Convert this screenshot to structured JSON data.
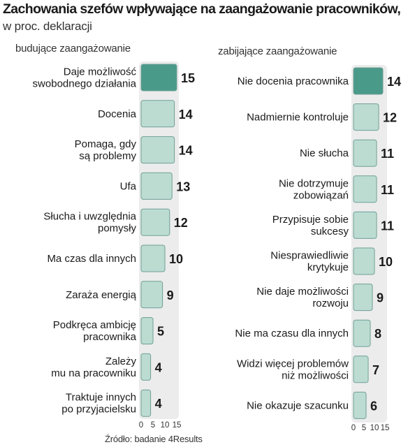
{
  "title": "Zachowania szefów wpływające na zaangażowanie pracowników,",
  "subtitle": "w proc. deklaracji",
  "source": "Źródło: badanie 4Results",
  "colors": {
    "highlight": "#4a9a8a",
    "bar": "#bcdcd2",
    "track": "#ececec",
    "bar_border": "#6f9f94"
  },
  "chart_data": [
    {
      "type": "bar",
      "orientation": "horizontal",
      "title": "budujące zaangażowanie",
      "categories": [
        "Daje możliwość\nswobodnego działania",
        "Docenia",
        "Pomaga, gdy\nsą problemy",
        "Ufa",
        "Słucha i uwzględnia\npomysły",
        "Ma czas dla innych",
        "Zaraża energią",
        "Podkręca ambicję\npracownika",
        "Zależy\nmu na pracowniku",
        "Traktuje innych\npo przyjacielsku"
      ],
      "values": [
        15,
        14,
        14,
        13,
        12,
        10,
        9,
        5,
        4,
        4
      ],
      "highlight_index": 0,
      "xlim": [
        0,
        15
      ],
      "xticks": [
        "0",
        "5",
        "10",
        "15"
      ],
      "grid": false
    },
    {
      "type": "bar",
      "orientation": "horizontal",
      "title": "zabijające zaangażowanie",
      "categories": [
        "Nie docenia pracownika",
        "Nadmiernie kontroluje",
        "Nie słucha",
        "Nie dotrzymuje\nzobowiązań",
        "Przypisuje sobie\nsukcesy",
        "Niesprawiedliwie\nkrytykuje",
        "Nie daje możliwości\nrozwoju",
        "Nie ma czasu dla innych",
        "Widzi więcej problemów\nniż możliwości",
        "Nie okazuje szacunku"
      ],
      "values": [
        14,
        12,
        11,
        11,
        11,
        10,
        9,
        8,
        7,
        6
      ],
      "highlight_index": 0,
      "xlim": [
        0,
        15
      ],
      "xticks": [
        "0",
        "5",
        "10",
        "15"
      ],
      "grid": false
    }
  ]
}
